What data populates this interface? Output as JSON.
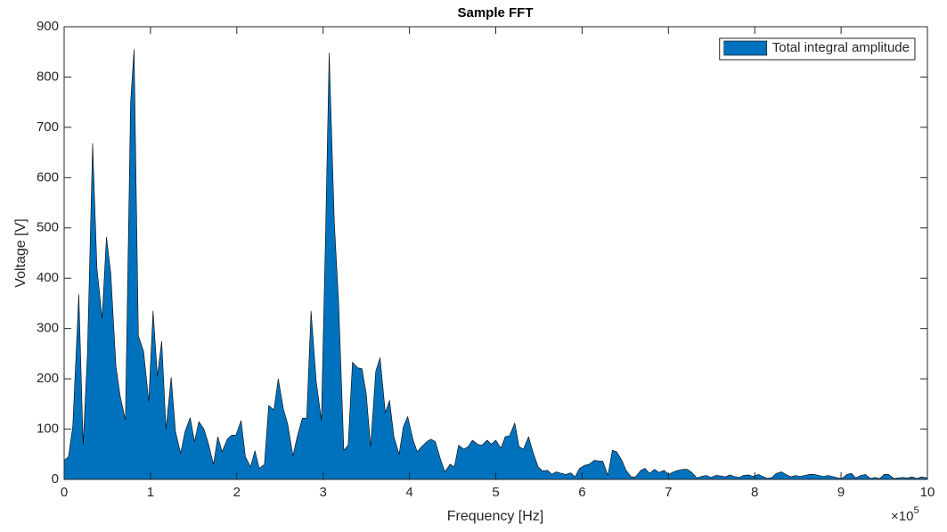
{
  "chart_data": {
    "type": "area",
    "title": "Sample FFT",
    "x_label": "Frequency [Hz]",
    "y_label": "Voltage [V]",
    "x_exponent": {
      "base": "×10",
      "power": "5"
    },
    "legend": "top-right",
    "x": [
      0,
      0.05,
      0.1,
      0.17,
      0.22,
      0.27,
      0.33,
      0.38,
      0.44,
      0.49,
      0.54,
      0.6,
      0.65,
      0.71,
      0.77,
      0.81,
      0.86,
      0.92,
      0.98,
      1.03,
      1.08,
      1.13,
      1.18,
      1.24,
      1.29,
      1.35,
      1.4,
      1.46,
      1.51,
      1.56,
      1.62,
      1.67,
      1.73,
      1.78,
      1.83,
      1.89,
      1.94,
      1.99,
      2.05,
      2.1,
      2.16,
      2.21,
      2.26,
      2.32,
      2.37,
      2.43,
      2.48,
      2.54,
      2.59,
      2.65,
      2.7,
      2.76,
      2.81,
      2.86,
      2.92,
      2.98,
      3.03,
      3.07,
      3.13,
      3.18,
      3.24,
      3.29,
      3.34,
      3.4,
      3.45,
      3.5,
      3.55,
      3.61,
      3.66,
      3.72,
      3.77,
      3.82,
      3.88,
      3.93,
      3.98,
      4.04,
      4.09,
      4.14,
      4.2,
      4.25,
      4.3,
      4.36,
      4.41,
      4.47,
      4.52,
      4.57,
      4.63,
      4.68,
      4.73,
      4.79,
      4.84,
      4.9,
      4.95,
      5.0,
      5.06,
      5.11,
      5.16,
      5.22,
      5.27,
      5.32,
      5.38,
      5.43,
      5.49,
      5.54,
      5.6,
      5.65,
      5.7,
      5.76,
      5.81,
      5.87,
      5.92,
      5.97,
      6.03,
      6.08,
      6.14,
      6.19,
      6.24,
      6.3,
      6.35,
      6.4,
      6.46,
      6.51,
      6.57,
      6.62,
      6.68,
      6.73,
      6.78,
      6.84,
      6.89,
      6.95,
      7.0,
      7.06,
      7.11,
      7.17,
      7.22,
      7.27,
      7.33,
      7.38,
      7.44,
      7.49,
      7.55,
      7.6,
      7.66,
      7.71,
      7.76,
      7.82,
      7.87,
      7.93,
      7.98,
      8.04,
      8.09,
      8.15,
      8.2,
      8.25,
      8.31,
      8.36,
      8.42,
      8.47,
      8.52,
      8.58,
      8.63,
      8.69,
      8.74,
      8.8,
      8.85,
      8.9,
      8.96,
      9.01,
      9.07,
      9.12,
      9.17,
      9.23,
      9.28,
      9.34,
      9.39,
      9.45,
      9.5,
      9.55,
      9.61,
      9.66,
      9.71,
      9.77,
      9.82,
      9.88,
      9.93,
      10
    ],
    "series": [
      {
        "name": "Total integral amplitude",
        "color": "#0072bd",
        "values": [
          38,
          45,
          105,
          368,
          70,
          250,
          668,
          420,
          320,
          482,
          410,
          225,
          165,
          118,
          750,
          855,
          285,
          255,
          155,
          335,
          205,
          275,
          100,
          203,
          95,
          52,
          95,
          123,
          75,
          115,
          100,
          72,
          30,
          85,
          55,
          80,
          88,
          88,
          117,
          45,
          25,
          57,
          22,
          30,
          147,
          138,
          200,
          140,
          110,
          47,
          85,
          122,
          122,
          335,
          195,
          118,
          500,
          848,
          510,
          350,
          58,
          68,
          233,
          222,
          220,
          170,
          65,
          215,
          242,
          133,
          157,
          85,
          50,
          105,
          125,
          80,
          55,
          65,
          75,
          80,
          75,
          40,
          15,
          30,
          25,
          68,
          60,
          65,
          78,
          70,
          68,
          78,
          70,
          78,
          62,
          85,
          87,
          112,
          65,
          60,
          85,
          55,
          25,
          17,
          18,
          10,
          15,
          12,
          10,
          13,
          5,
          22,
          28,
          30,
          38,
          37,
          36,
          8,
          58,
          55,
          38,
          18,
          5,
          5,
          18,
          22,
          12,
          20,
          14,
          18,
          10,
          15,
          18,
          20,
          20,
          14,
          3,
          6,
          8,
          4,
          8,
          7,
          5,
          9,
          6,
          4,
          8,
          9,
          6,
          10,
          6,
          2,
          4,
          12,
          15,
          10,
          5,
          8,
          6,
          8,
          10,
          10,
          8,
          6,
          8,
          6,
          3,
          2,
          10,
          12,
          3,
          8,
          10,
          2,
          4,
          2,
          10,
          10,
          2,
          3,
          4,
          3,
          5,
          2,
          5,
          3
        ]
      }
    ],
    "xlim": [
      0,
      10
    ],
    "xticks": [
      0,
      1,
      2,
      3,
      4,
      5,
      6,
      7,
      8,
      9,
      10
    ],
    "ylim": [
      0,
      900
    ],
    "yticks": [
      0,
      100,
      200,
      300,
      400,
      500,
      600,
      700,
      800,
      900
    ]
  }
}
